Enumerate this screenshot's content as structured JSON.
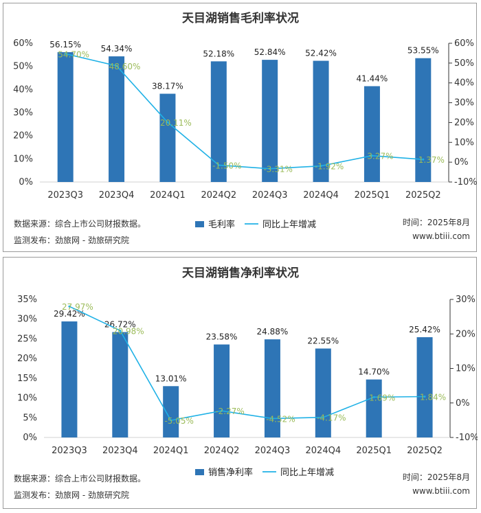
{
  "chart_data": [
    {
      "type": "bar",
      "title": "天目湖销售毛利率状况",
      "categories": [
        "2023Q3",
        "2023Q4",
        "2024Q1",
        "2024Q2",
        "2024Q3",
        "2024Q4",
        "2025Q1",
        "2025Q2"
      ],
      "series": [
        {
          "name": "毛利率",
          "type": "bar",
          "axis": "left",
          "values": [
            56.15,
            54.34,
            38.17,
            52.18,
            52.84,
            52.42,
            41.44,
            53.55
          ],
          "labels": [
            "56.15%",
            "54.34%",
            "38.17%",
            "52.18%",
            "52.84%",
            "52.42%",
            "41.44%",
            "53.55%"
          ],
          "color": "#2e75b6"
        },
        {
          "name": "同比上年增减",
          "type": "line",
          "axis": "right",
          "values": [
            54.7,
            48.6,
            20.11,
            -1.5,
            -3.31,
            -1.92,
            3.27,
            1.37
          ],
          "labels": [
            "54.70%",
            "48.60%",
            "20.11%",
            "-1.50%",
            "-3.31%",
            "-1.92%",
            "3.27%",
            "1.37%"
          ],
          "color": "#1fb1e6",
          "label_color": "#9bbb59"
        }
      ],
      "ylim_left": [
        0,
        60
      ],
      "yticks_left": [
        "0%",
        "10%",
        "20%",
        "30%",
        "40%",
        "50%",
        "60%"
      ],
      "ylim_right": [
        -10,
        60
      ],
      "yticks_right": [
        "-10%",
        "0%",
        "10%",
        "20%",
        "30%",
        "40%",
        "50%",
        "60%"
      ],
      "legend_position": "bottom-center",
      "grid": false,
      "source": "数据来源：综合上市公司财报数据。",
      "publisher": "监测发布：劲旅网 - 劲旅研究院",
      "time": "时间：2025年8月",
      "website": "www.btiii.com"
    },
    {
      "type": "bar",
      "title": "天目湖销售净利率状况",
      "categories": [
        "2023Q3",
        "2023Q4",
        "2024Q1",
        "2024Q2",
        "2024Q3",
        "2024Q4",
        "2025Q1",
        "2025Q2"
      ],
      "series": [
        {
          "name": "销售净利率",
          "type": "bar",
          "axis": "left",
          "values": [
            29.42,
            26.72,
            13.01,
            23.58,
            24.88,
            22.55,
            14.7,
            25.42
          ],
          "labels": [
            "29.42%",
            "26.72%",
            "13.01%",
            "23.58%",
            "24.88%",
            "22.55%",
            "14.70%",
            "25.42%"
          ],
          "color": "#2e75b6"
        },
        {
          "name": "同比上年增减",
          "type": "line",
          "axis": "right",
          "values": [
            27.97,
            20.98,
            -5.05,
            -2.27,
            -4.52,
            -4.17,
            1.69,
            1.84
          ],
          "labels": [
            "27.97%",
            "20.98%",
            "-5.05%",
            "-2.27%",
            "-4.52%",
            "-4.17%",
            "1.69%",
            "1.84%"
          ],
          "color": "#1fb1e6",
          "label_color": "#9bbb59"
        }
      ],
      "ylim_left": [
        0,
        35
      ],
      "yticks_left": [
        "0%",
        "5%",
        "10%",
        "15%",
        "20%",
        "25%",
        "30%",
        "35%"
      ],
      "ylim_right": [
        -10,
        30
      ],
      "yticks_right": [
        "-10%",
        "0%",
        "10%",
        "20%",
        "30%"
      ],
      "legend_position": "bottom-center",
      "grid": false,
      "source": "数据来源：综合上市公司财报数据。",
      "publisher": "监测发布：劲旅网 - 劲旅研究院",
      "time": "时间：2025年8月",
      "website": "www.btiii.com"
    }
  ]
}
